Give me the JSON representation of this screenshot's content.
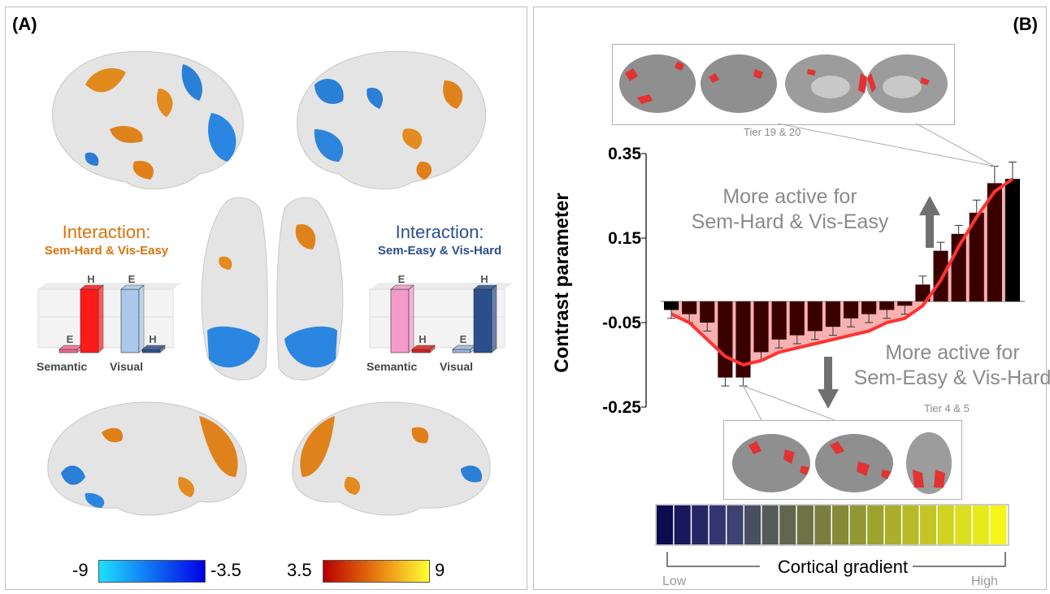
{
  "panel_a": {
    "label": "(A)",
    "left_interaction": {
      "title": "Interaction:",
      "subtitle": "Sem-Hard & Vis-Easy",
      "color": "#d9730d",
      "bars": [
        {
          "group": "Semantic",
          "top_label": "E",
          "value": 0.05,
          "color": "#ee6b8f"
        },
        {
          "group": "Semantic",
          "top_label": "H",
          "value": 1.0,
          "color": "#ff1a1a"
        },
        {
          "group": "Visual",
          "top_label": "E",
          "value": 1.0,
          "color": "#a9c8ea"
        },
        {
          "group": "Visual",
          "top_label": "H",
          "value": 0.05,
          "color": "#2f4f8a"
        }
      ],
      "group_labels": [
        "Semantic",
        "Visual"
      ]
    },
    "right_interaction": {
      "title": "Interaction:",
      "subtitle": "Sem-Easy & Vis-Hard",
      "color": "#2c4f93",
      "bars": [
        {
          "group": "Semantic",
          "top_label": "E",
          "value": 1.0,
          "color": "#f39ac9"
        },
        {
          "group": "Semantic",
          "top_label": "H",
          "value": 0.05,
          "color": "#d92020"
        },
        {
          "group": "Visual",
          "top_label": "E",
          "value": 0.05,
          "color": "#9ab6dd"
        },
        {
          "group": "Visual",
          "top_label": "H",
          "value": 1.0,
          "color": "#2b4f8c"
        }
      ],
      "group_labels": [
        "Semantic",
        "Visual"
      ]
    },
    "colorbars": {
      "negative": {
        "min_label": "-9",
        "max_label": "-3.5",
        "from": "#1ee0ff",
        "to": "#0000e6"
      },
      "positive": {
        "min_label": "3.5",
        "max_label": "9",
        "from": "#b80000",
        "to": "#ffff33"
      }
    }
  },
  "panel_b": {
    "label": "(B)",
    "top_tier_label": "Tier 19 & 20",
    "bottom_tier_label": "Tier 4 & 5",
    "annotation_up": [
      "More active for",
      "Sem-Hard & Vis-Easy"
    ],
    "annotation_down": [
      "More active for",
      "Sem-Easy & Vis-Hard"
    ],
    "gradient": {
      "label": "Cortical gradient",
      "low_label": "Low",
      "high_label": "High",
      "colors": [
        "#0b0b4d",
        "#18185a",
        "#252765",
        "#323570",
        "#3e4270",
        "#4a4e63",
        "#565a58",
        "#62664e",
        "#6e7246",
        "#7a7d3f",
        "#868a38",
        "#929633",
        "#9ea22f",
        "#aaae2b",
        "#b6ba28",
        "#c2c625",
        "#cfd322",
        "#dcdf1f",
        "#e9ea1c",
        "#f5f51a"
      ]
    }
  },
  "chart_data": {
    "type": "bar",
    "ylabel": "Contrast parameter",
    "y_ticks": [
      "0.35",
      "0.15",
      "-0.05",
      "-0.25"
    ],
    "ylim": [
      -0.25,
      0.35
    ],
    "x": [
      1,
      2,
      3,
      4,
      5,
      6,
      7,
      8,
      9,
      10,
      11,
      12,
      13,
      14,
      15,
      16,
      17,
      18,
      19,
      20
    ],
    "values": [
      -0.02,
      -0.03,
      -0.05,
      -0.18,
      -0.18,
      -0.12,
      -0.09,
      -0.08,
      -0.07,
      -0.06,
      -0.04,
      -0.03,
      -0.02,
      -0.01,
      0.04,
      0.12,
      0.16,
      0.21,
      0.28,
      0.29
    ],
    "errors": [
      0.02,
      0.02,
      0.02,
      0.02,
      0.02,
      0.02,
      0.02,
      0.02,
      0.02,
      0.02,
      0.02,
      0.02,
      0.02,
      0.02,
      0.02,
      0.02,
      0.02,
      0.03,
      0.04,
      0.04
    ],
    "fit_curve": [
      -0.03,
      -0.05,
      -0.09,
      -0.13,
      -0.15,
      -0.14,
      -0.12,
      -0.11,
      -0.1,
      -0.09,
      -0.08,
      -0.07,
      -0.05,
      -0.04,
      -0.01,
      0.05,
      0.13,
      0.2,
      0.26,
      0.29
    ],
    "bar_color": "#3a0000",
    "highlight_bar_color": "#000000",
    "fit_color": "#ff3333",
    "fill_color": "#f6a3a3"
  }
}
